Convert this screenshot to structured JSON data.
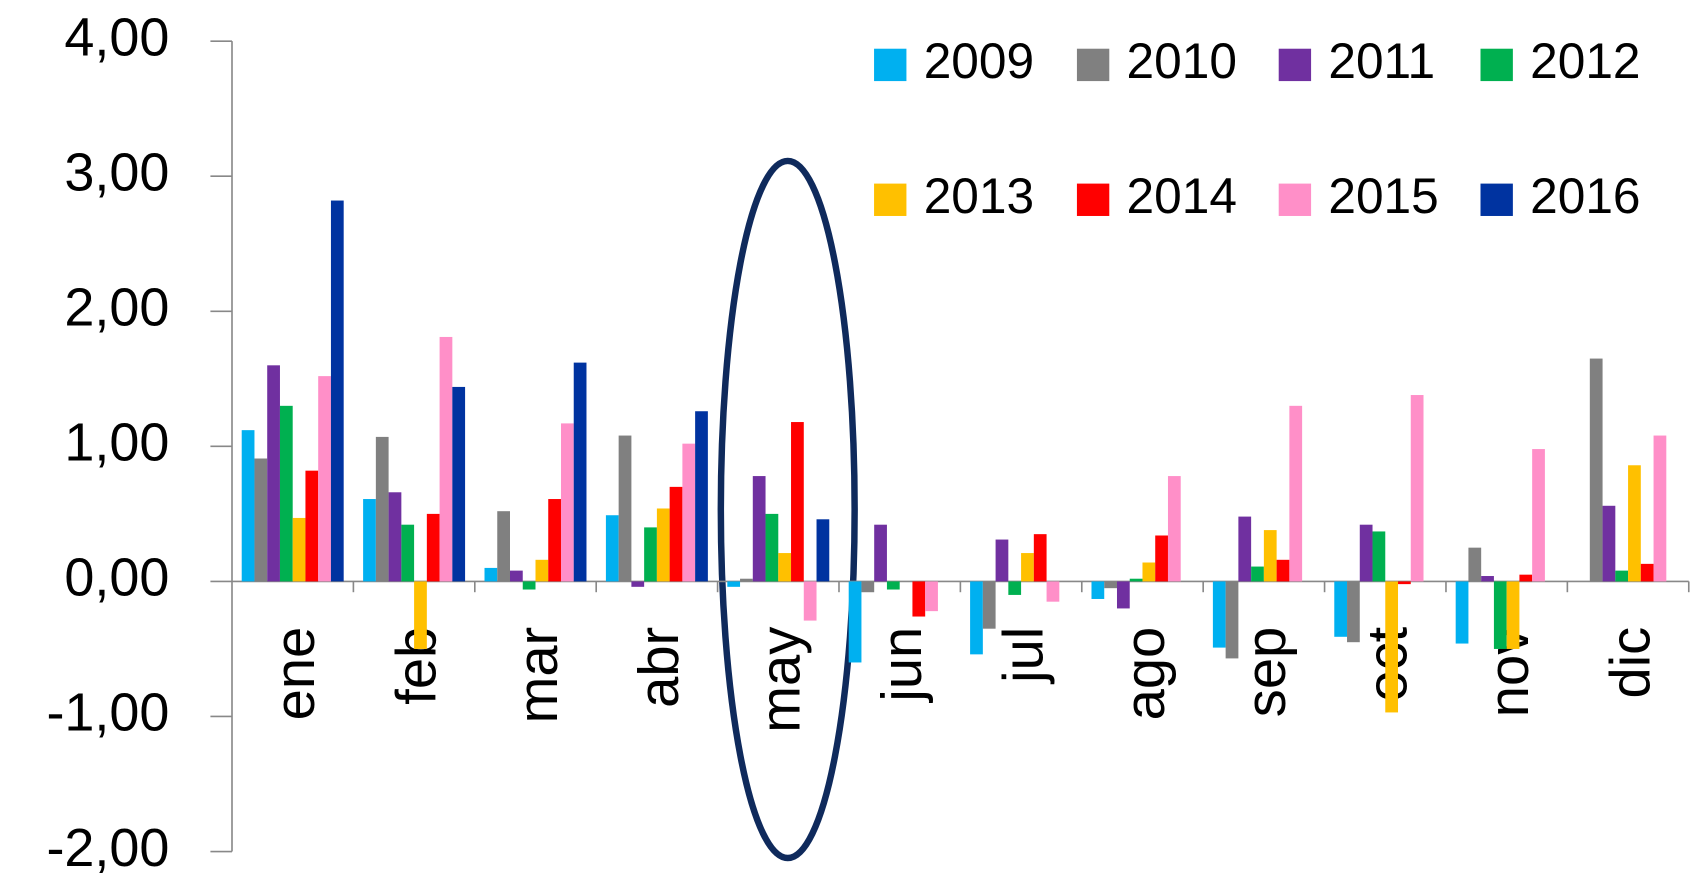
{
  "chart_data": {
    "type": "bar",
    "categories": [
      "ene",
      "feb",
      "mar",
      "abr",
      "may",
      "jun",
      "jul",
      "ago",
      "sep",
      "oct",
      "nov",
      "dic"
    ],
    "series": [
      {
        "name": "2009",
        "color": "#00b0f0",
        "values": [
          1.12,
          0.61,
          0.1,
          0.49,
          -0.04,
          -0.6,
          -0.54,
          -0.13,
          -0.49,
          -0.41,
          -0.46,
          null
        ]
      },
      {
        "name": "2010",
        "color": "#808080",
        "values": [
          0.91,
          1.07,
          0.52,
          1.08,
          0.02,
          -0.08,
          -0.35,
          -0.05,
          -0.57,
          -0.45,
          0.25,
          1.65
        ]
      },
      {
        "name": "2011",
        "color": "#7030a0",
        "values": [
          1.6,
          0.66,
          0.08,
          -0.04,
          0.78,
          0.42,
          0.31,
          -0.2,
          0.48,
          0.42,
          0.04,
          0.56
        ]
      },
      {
        "name": "2012",
        "color": "#00b050",
        "values": [
          1.3,
          0.42,
          -0.06,
          0.4,
          0.5,
          -0.06,
          -0.1,
          0.02,
          0.11,
          0.37,
          -0.5,
          0.08
        ]
      },
      {
        "name": "2013",
        "color": "#ffc000",
        "values": [
          0.47,
          -0.5,
          0.16,
          0.54,
          0.21,
          null,
          0.21,
          0.14,
          0.38,
          -0.97,
          -0.5,
          0.86
        ]
      },
      {
        "name": "2014",
        "color": "#ff0000",
        "values": [
          0.82,
          0.5,
          0.61,
          0.7,
          1.18,
          -0.26,
          0.35,
          0.34,
          0.16,
          -0.02,
          0.05,
          0.13
        ]
      },
      {
        "name": "2015",
        "color": "#ff8fc8",
        "values": [
          1.52,
          1.81,
          1.17,
          1.02,
          -0.29,
          -0.22,
          -0.15,
          0.78,
          1.3,
          1.38,
          0.98,
          1.08
        ]
      },
      {
        "name": "2016",
        "color": "#0033a0",
        "values": [
          2.82,
          1.44,
          1.62,
          1.26,
          0.46,
          null,
          null,
          null,
          null,
          null,
          null,
          null
        ]
      }
    ],
    "ylim": [
      -2,
      4
    ],
    "yticks": [
      {
        "value": -2,
        "label": "-2,00"
      },
      {
        "value": -1,
        "label": "-1,00"
      },
      {
        "value": 0,
        "label": "0,00"
      },
      {
        "value": 1,
        "label": "1,00"
      },
      {
        "value": 2,
        "label": "2,00"
      },
      {
        "value": 3,
        "label": "3,00"
      },
      {
        "value": 4,
        "label": "4,00"
      }
    ],
    "legend": "top-right"
  }
}
